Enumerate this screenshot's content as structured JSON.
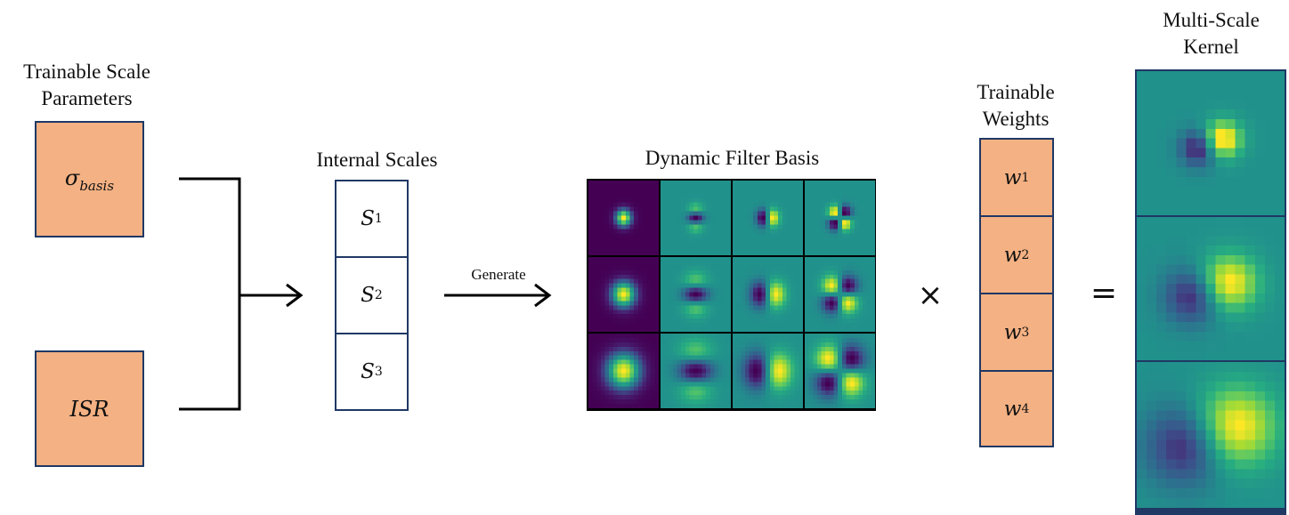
{
  "scale_params": {
    "title_line1": "Trainable Scale",
    "title_line2": "Parameters",
    "sigma_symbol": "σ",
    "sigma_subscript": "basis",
    "isr_label": "ISR"
  },
  "internal_scales": {
    "title": "Internal Scales",
    "items": [
      {
        "symbol": "S",
        "sub": "1"
      },
      {
        "symbol": "S",
        "sub": "2"
      },
      {
        "symbol": "S",
        "sub": "3"
      }
    ]
  },
  "generate_label": "Generate",
  "filter_basis": {
    "title": "Dynamic Filter Basis",
    "rows": 3,
    "cols": 4,
    "colors": {
      "low": "#440154",
      "mid": "#21908d",
      "high": "#fde725"
    }
  },
  "operators": {
    "multiply": "×",
    "equals": "="
  },
  "weights": {
    "title_line1": "Trainable",
    "title_line2": "Weights",
    "items": [
      {
        "symbol": "w",
        "sub": "1"
      },
      {
        "symbol": "w",
        "sub": "2"
      },
      {
        "symbol": "w",
        "sub": "3"
      },
      {
        "symbol": "w",
        "sub": "4"
      }
    ]
  },
  "kernel": {
    "title_line1": "Multi-Scale",
    "title_line2": "Kernel"
  },
  "colors": {
    "box_fill": "#f4b183",
    "box_border": "#1f3864"
  }
}
